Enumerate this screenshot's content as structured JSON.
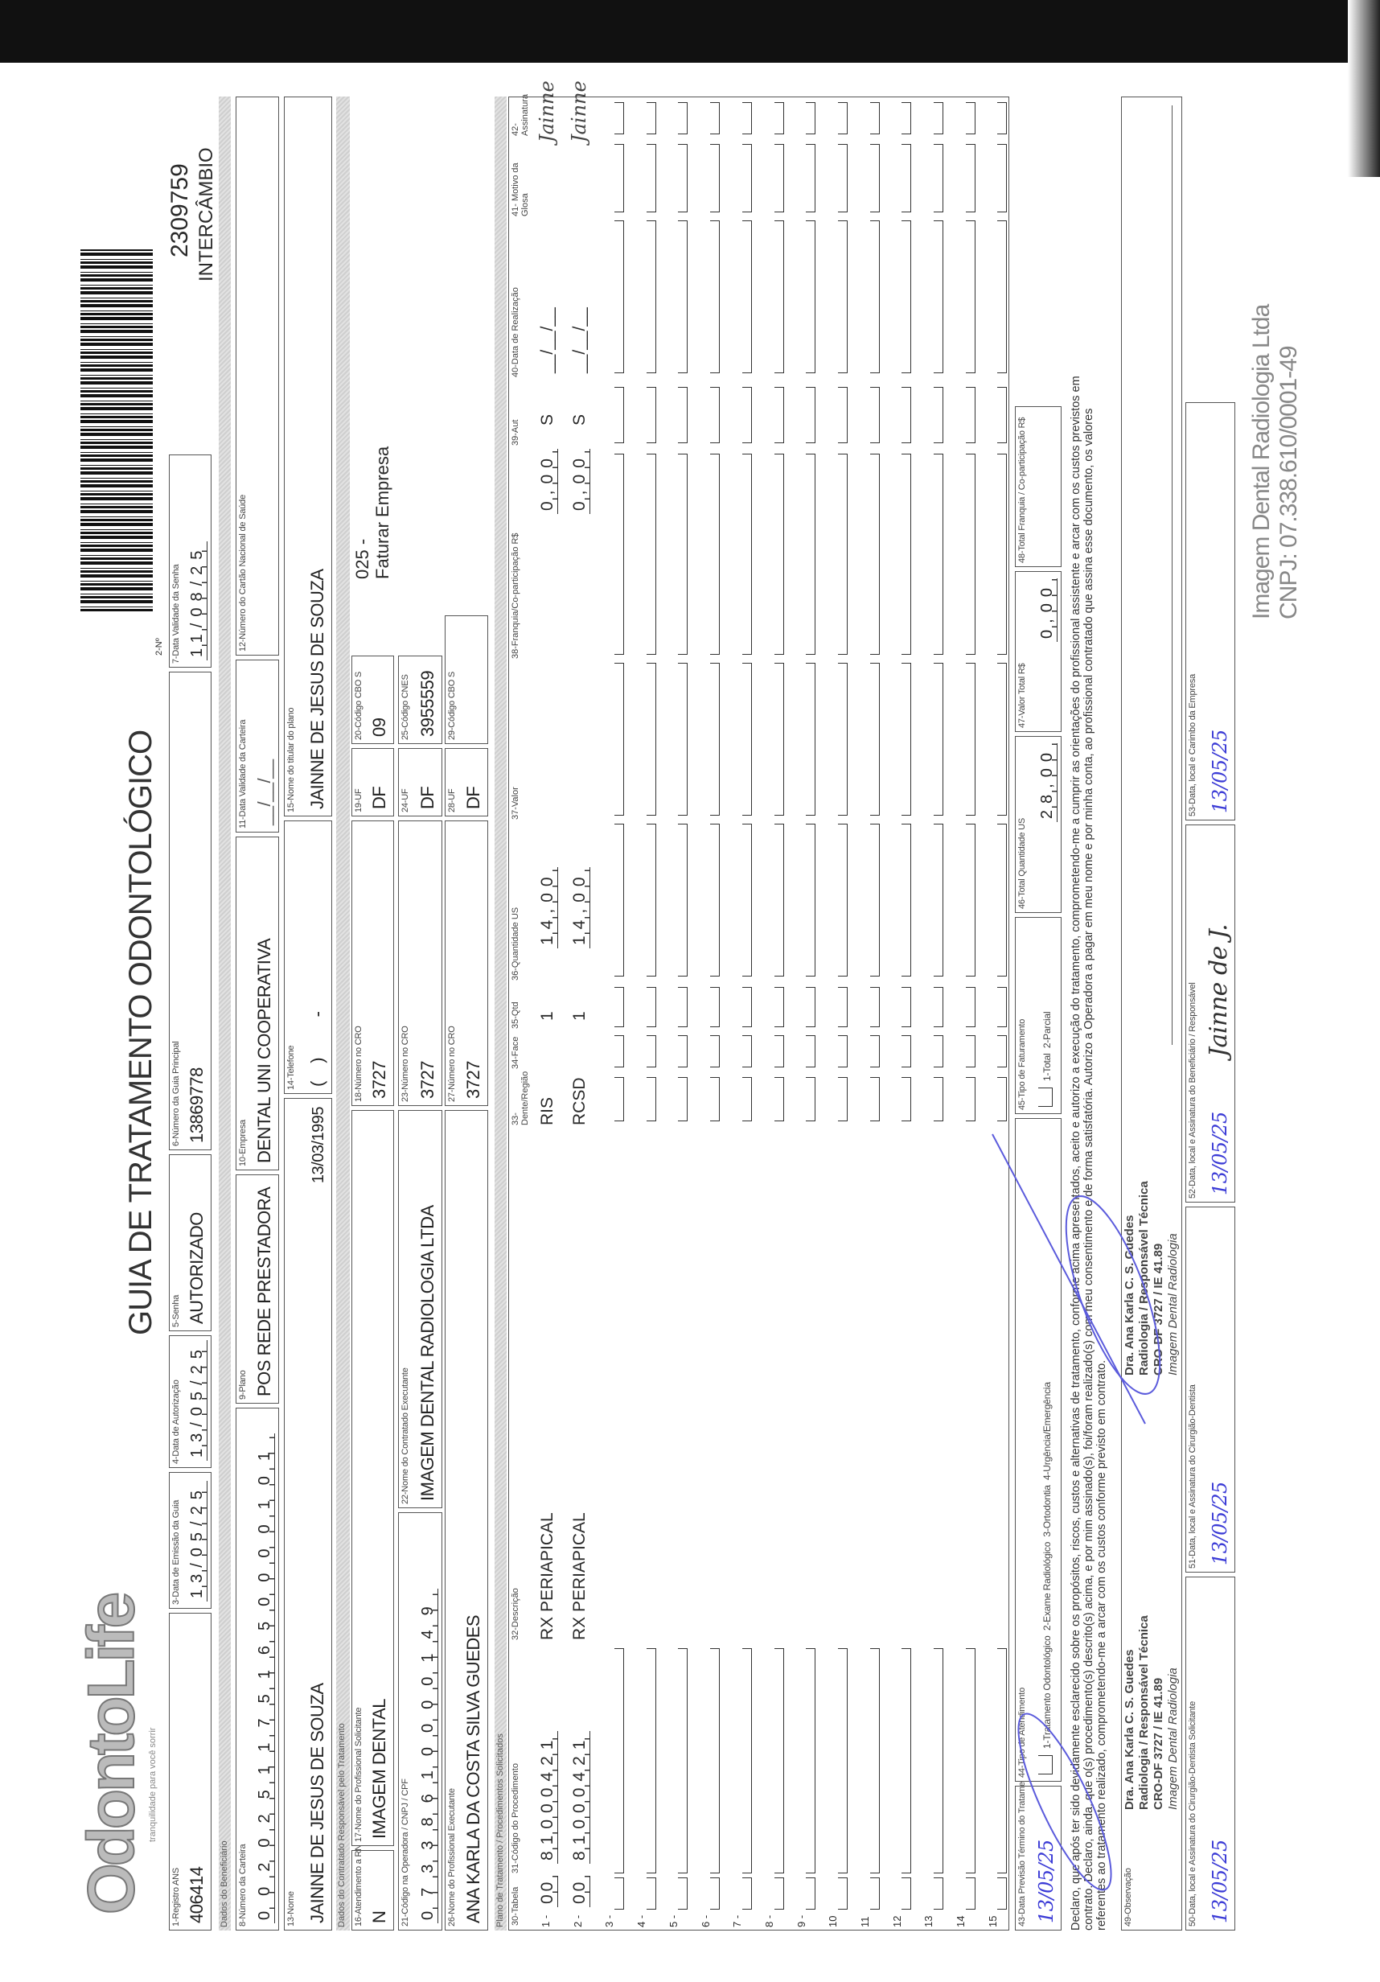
{
  "header": {
    "logo_text": "OdontoLife",
    "logo_tagline": "tranquilidade para você sorrir",
    "title": "GUIA DE TRATAMENTO ODONTOLÓGICO",
    "guide_number_label": "2-Nº",
    "guide_number": "2309759",
    "guide_type": "INTERCÂMBIO"
  },
  "sections": {
    "beneficiary": "Dados do Beneficiário",
    "contractor": "Dados do Contratado Responsável pelo Tratamento",
    "plan": "Plano de Tratamento / Procedimentos Solicitados"
  },
  "fields": {
    "f1": {
      "label": "1-Registro ANS",
      "value": "406414"
    },
    "f3": {
      "label": "3-Data de Emissão da Guia",
      "value": "13/05/25"
    },
    "f4": {
      "label": "4-Data de Autorização",
      "value": "13/05/25"
    },
    "f5": {
      "label": "5-Senha",
      "value": "AUTORIZADO"
    },
    "f6": {
      "label": "6-Número da Guia Principal",
      "value": "13869778"
    },
    "f7": {
      "label": "7-Data Validade da Senha",
      "value": "11/08/25"
    },
    "f8": {
      "label": "8-Número da Carteira",
      "value": "00202511751650000101"
    },
    "f9": {
      "label": "9-Plano",
      "value": "POS REDE PRESTADORA"
    },
    "f10": {
      "label": "10-Empresa",
      "value": "DENTAL UNI COOPERATIVA"
    },
    "f11": {
      "label": "11-Data Validade da Carteira",
      "value": "__/__/__"
    },
    "f12": {
      "label": "12-Número do Cartão Nacional de Saúde",
      "value": ""
    },
    "f13": {
      "label": "13-Nome",
      "value": "JAINNE DE JESUS DE SOUZA",
      "birth": "13/03/1995"
    },
    "f14": {
      "label": "14-Telefone",
      "value": "(    )         -"
    },
    "f15": {
      "label": "15-Nome do titular do plano",
      "value": "JAINNE DE JESUS DE SOUZA"
    },
    "f16": {
      "label": "16-Atendimento a RN",
      "value": "N"
    },
    "f17": {
      "label": "17-Nome do Profissional Solicitante",
      "value": "IMAGEM DENTAL"
    },
    "f18": {
      "label": "18-Número no CRO",
      "value": "3727"
    },
    "f19": {
      "label": "19-UF",
      "value": "DF"
    },
    "f20": {
      "label": "20-Código CBO S",
      "value": "09"
    },
    "billing_note_code": "025 -",
    "billing_note": "Faturar Empresa",
    "f21": {
      "label": "21-Código na Operadora / CNPJ / CPF",
      "value": "07338610000149"
    },
    "f22": {
      "label": "22-Nome do Contratado Executante",
      "value": "IMAGEM DENTAL RADIOLOGIA LTDA"
    },
    "f23": {
      "label": "23-Número no CRO",
      "value": "3727"
    },
    "f24": {
      "label": "24-UF",
      "value": "DF"
    },
    "f25": {
      "label": "25-Código CNES",
      "value": "3955559"
    },
    "f26": {
      "label": "26-Nome do Profissional Executante",
      "value": "ANA KARLA DA COSTA SILVA GUEDES"
    },
    "f27": {
      "label": "27-Número no CRO",
      "value": "3727"
    },
    "f28": {
      "label": "28-UF",
      "value": "DF"
    },
    "f29": {
      "label": "29-Código CBO S",
      "value": ""
    }
  },
  "table": {
    "columns": [
      "30-Tabela",
      "31-Código do Procedimento",
      "32-Descrição",
      "33-Dente/Região",
      "34-Face",
      "35-Qtd",
      "36-Quantidade US",
      "37-Valor",
      "38-Franquia/Co-participação R$",
      "39-Aut",
      "40-Data de Realização",
      "41- Motivo da Glosa",
      "42-Assinatura"
    ],
    "rows": [
      {
        "num": "1 -",
        "tabela": "00",
        "code": "81000421",
        "description": "RX PERIAPICAL",
        "tooth": "RIS",
        "face": "",
        "qty": "1",
        "us": "14,00",
        "valor": "",
        "franquia": "0,00",
        "aut": "S",
        "date": "__/__/__",
        "glosa": "",
        "signature": "Jainne"
      },
      {
        "num": "2 -",
        "tabela": "00",
        "code": "81000421",
        "description": "RX PERIAPICAL",
        "tooth": "RCSD",
        "face": "",
        "qty": "1",
        "us": "14,00",
        "valor": "",
        "franquia": "0,00",
        "aut": "S",
        "date": "__/__/__",
        "glosa": "",
        "signature": "Jainne"
      },
      {
        "num": "3 -"
      },
      {
        "num": "4 -"
      },
      {
        "num": "5 -"
      },
      {
        "num": "6 -"
      },
      {
        "num": "7 -"
      },
      {
        "num": "8 -"
      },
      {
        "num": "9 -"
      },
      {
        "num": "10"
      },
      {
        "num": "11"
      },
      {
        "num": "12"
      },
      {
        "num": "13"
      },
      {
        "num": "14"
      },
      {
        "num": "15"
      }
    ]
  },
  "footer": {
    "f43": {
      "label": "43-Data Previsão Término do Tratamento",
      "value": "13/05/25"
    },
    "f44": {
      "label": "44-Tipo de Atendimento",
      "options": "1-Tratamento Odontológico  2-Exame Radiológico  3-Ortodontia  4-Urgência/Emergência"
    },
    "f45": {
      "label": "45-Tipo de Faturamento",
      "options": "1-Total  2-Parcial"
    },
    "f46": {
      "label": "46-Total Quantidade US",
      "value": "28,00"
    },
    "f47": {
      "label": "47-Valor Total R$",
      "value": "0,00"
    },
    "f48": {
      "label": "48-Total Franquia / Co-participação R$",
      "value": ""
    },
    "declaration": [
      "Declaro, que após ter sido devidamente esclarecido sobre os propósitos, riscos, custos e alternativas de tratamento, conforme acima apresentados, aceito e autorizo a execução do tratamento, comprometendo-me a cumprir as orientações do profissional assistente e arcar com os custos previstos em",
      "contrato. Declaro, ainda, que o(s) procedimento(s) descrito(s) acima, e por mim assinado(s), foi/foram realizado(s) com meu consentimento e de forma satisfatória. Autorizo a Operadora a pagar em meu nome e por minha conta, ao profissional contratado que assina esse documento, os valores",
      "referentes ao tratamento realizado, comprometendo-me a arcar com os custos conforme previsto em contrato."
    ],
    "f49": {
      "label": "49-Observação",
      "value": ""
    },
    "f50": {
      "label": "50-Data, local e Assinatura do Cirurgião-Dentista Solicitante",
      "value": "13/05/25"
    },
    "f51": {
      "label": "51-Data, local e Assinatura do Cirurgião-Dentista",
      "value": "13/05/25"
    },
    "f52": {
      "label": "52-Data, local e Assinatura do Beneficiário / Responsável",
      "value": "13/05/25",
      "signature": "Jainne de J."
    },
    "f53": {
      "label": "53-Data, local e Carimbo da Empresa",
      "value": "13/05/25"
    }
  },
  "stamps": {
    "dentist": [
      "Dra. Ana Karla C. S. Guedes",
      "Radiologia / Responsável Técnica",
      "CRO-DF 3727 / IE 41.89",
      "Imagem Dental Radiologia"
    ],
    "company": [
      "Imagem Dental Radiologia Ltda",
      "CNPJ: 07.338.610/0001-49"
    ]
  },
  "colors": {
    "ink_blue": "#3b3bd6",
    "form_gray": "#555555",
    "band_gray": "#d8d8d8"
  }
}
